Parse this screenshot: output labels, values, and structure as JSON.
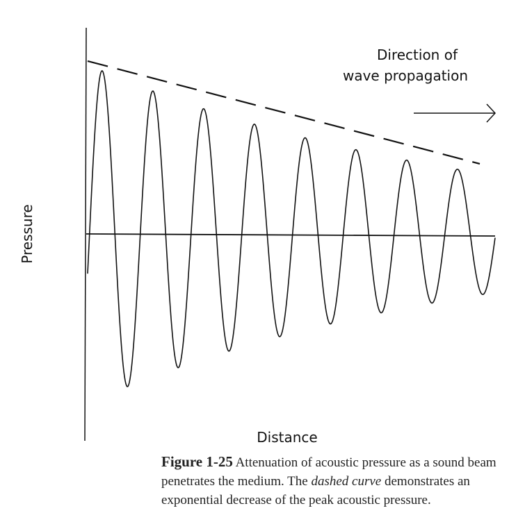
{
  "diagram": {
    "y_axis_label": "Pressure",
    "x_axis_label": "Distance",
    "annotation_lines": [
      "Direction of",
      "wave propagation"
    ]
  },
  "caption": {
    "label": "Figure 1-25",
    "text_before": "Attenuation of acoustic pressure as a sound beam penetrates the medium. The",
    "emphasis": "dashed curve",
    "text_after": "demonstrates an exponential decrease of the peak acoustic pressure."
  }
}
